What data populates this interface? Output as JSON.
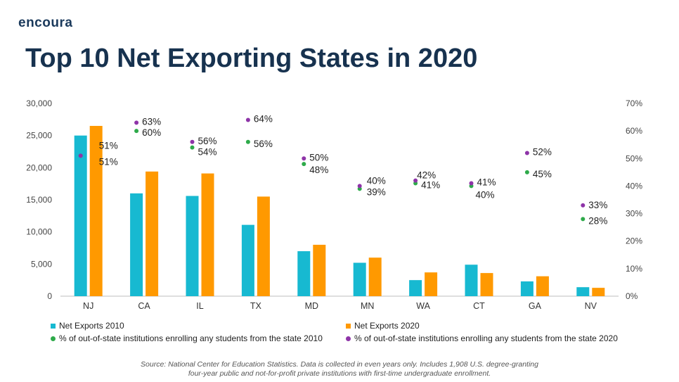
{
  "logo": {
    "text": "encoura"
  },
  "title": "Top 10 Net Exporting States in 2020",
  "source_line1": "Source: National Center for Education Statistics. Data is collected in even years only. Includes 1,908 U.S. degree-granting",
  "source_line2": "four-year public and not-for-profit private institutions with first-time undergraduate enrollment.",
  "colors": {
    "net_2010": "#17b9d1",
    "net_2020": "#ff9900",
    "pct_2010": "#2eaa4a",
    "pct_2020": "#8e34a8",
    "axis": "#444444"
  },
  "chart_data": {
    "type": "bar",
    "categories": [
      "NJ",
      "CA",
      "IL",
      "TX",
      "MD",
      "MN",
      "WA",
      "CT",
      "GA",
      "NV"
    ],
    "series": [
      {
        "name": "Net Exports 2010",
        "type": "bar",
        "axis": "left",
        "values": [
          25000,
          16000,
          15600,
          11100,
          7000,
          5200,
          2500,
          4900,
          2300,
          1400
        ]
      },
      {
        "name": "Net Exports 2020",
        "type": "bar",
        "axis": "left",
        "values": [
          26500,
          19400,
          19100,
          15500,
          8000,
          6000,
          3700,
          3600,
          3100,
          1300
        ]
      },
      {
        "name": "% of out-of-state institutions enrolling any students from the state 2010",
        "type": "scatter",
        "axis": "right",
        "values": [
          51,
          60,
          54,
          56,
          48,
          39,
          41,
          40,
          45,
          28
        ]
      },
      {
        "name": "% of out-of-state institutions enrolling any students from the state 2020",
        "type": "scatter",
        "axis": "right",
        "values": [
          51,
          63,
          56,
          64,
          50,
          40,
          42,
          41,
          52,
          33
        ]
      }
    ],
    "left_axis": {
      "ylim": [
        0,
        30000
      ],
      "ticks": [
        "0",
        "5,000",
        "10,000",
        "15,000",
        "20,000",
        "25,000",
        "30,000"
      ]
    },
    "right_axis": {
      "ylim": [
        0,
        70
      ],
      "ticks": [
        "0%",
        "10%",
        "20%",
        "30%",
        "40%",
        "50%",
        "60%",
        "70%"
      ]
    },
    "point_labels_2010": [
      "51%",
      "60%",
      "54%",
      "56%",
      "48%",
      "39%",
      "41%",
      "40%",
      "45%",
      "28%"
    ],
    "point_labels_2020": [
      "51%",
      "63%",
      "56%",
      "64%",
      "50%",
      "40%",
      "42%",
      "41%",
      "52%",
      "33%"
    ],
    "grid": false,
    "legend": "bottom"
  }
}
